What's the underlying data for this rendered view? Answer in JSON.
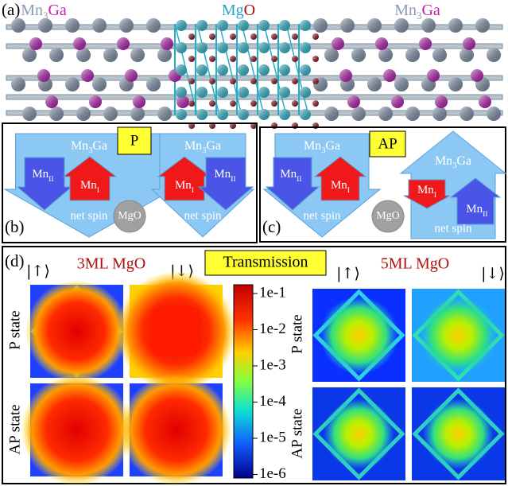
{
  "panel_a": {
    "label": "(a)",
    "materials": [
      [
        {
          "text": "Mn",
          "color": "#8a9bb8"
        },
        {
          "text": "3",
          "sub": true,
          "color": "#8a9bb8"
        },
        {
          "text": "Ga",
          "color": "#c21fa8"
        }
      ],
      [
        {
          "text": "Mg",
          "color": "#22a6c8"
        },
        {
          "text": "O",
          "color": "#a51010"
        }
      ],
      [
        {
          "text": "Mn",
          "color": "#8a9bb8"
        },
        {
          "text": "3",
          "sub": true,
          "color": "#8a9bb8"
        },
        {
          "text": "Ga",
          "color": "#c21fa8"
        }
      ]
    ]
  },
  "panel_b": {
    "label": "(b)",
    "state": "P",
    "barrier": "MgO",
    "electrodes": [
      {
        "name": [
          {
            "text": "Mn"
          },
          {
            "text": "3",
            "sub": true
          },
          {
            "text": "Ga"
          }
        ],
        "atoms": [
          [
            {
              "text": "Mn"
            },
            {
              "text": "II",
              "sub": true
            }
          ],
          [
            {
              "text": "Mn"
            },
            {
              "text": "I",
              "sub": true
            }
          ]
        ],
        "spin": "net spin"
      },
      {
        "name": [
          {
            "text": "Mn"
          },
          {
            "text": "3",
            "sub": true
          },
          {
            "text": "Ga"
          }
        ],
        "atoms": [
          [
            {
              "text": "Mn"
            },
            {
              "text": "I",
              "sub": true
            }
          ],
          [
            {
              "text": "Mn"
            },
            {
              "text": "II",
              "sub": true
            }
          ]
        ],
        "spin": "net spin"
      }
    ]
  },
  "panel_c": {
    "label": "(c)",
    "state": "AP",
    "barrier": "MgO",
    "electrodes": [
      {
        "name": [
          {
            "text": "Mn"
          },
          {
            "text": "3",
            "sub": true
          },
          {
            "text": "Ga"
          }
        ],
        "atoms": [
          [
            {
              "text": "Mn"
            },
            {
              "text": "II",
              "sub": true
            }
          ],
          [
            {
              "text": "Mn"
            },
            {
              "text": "I",
              "sub": true
            }
          ]
        ],
        "spin": "net spin"
      },
      {
        "name": [
          {
            "text": "Mn"
          },
          {
            "text": "3",
            "sub": true
          },
          {
            "text": "Ga"
          }
        ],
        "atoms": [
          [
            {
              "text": "Mn"
            },
            {
              "text": "I",
              "sub": true
            }
          ],
          [
            {
              "text": "Mn"
            },
            {
              "text": "II",
              "sub": true
            }
          ]
        ],
        "spin": "net spin"
      }
    ]
  },
  "panel_d": {
    "label": "(d)",
    "title": "Transmission",
    "thickness": [
      "3ML MgO",
      "5ML MgO"
    ],
    "spins": [
      "|↑⟩",
      "|↓⟩"
    ],
    "rows": [
      "P state",
      "AP state"
    ],
    "colorbar_ticks": [
      "1e-1",
      "1e-2",
      "1e-3",
      "1e-4",
      "1e-5",
      "1e-6"
    ]
  }
}
